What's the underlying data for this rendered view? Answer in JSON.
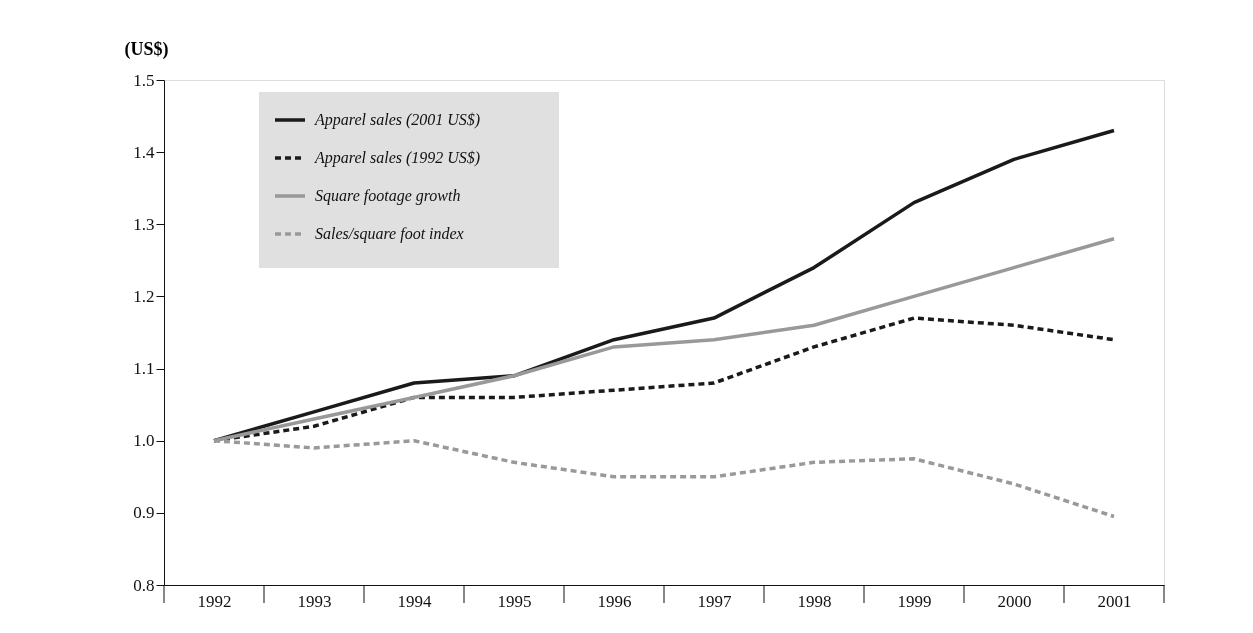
{
  "chart_data": {
    "type": "line",
    "ylabel": "(US$)",
    "categories": [
      "1992",
      "1993",
      "1994",
      "1995",
      "1996",
      "1997",
      "1998",
      "1999",
      "2000",
      "2001"
    ],
    "series": [
      {
        "name": "Apparel sales (2001 US$)",
        "color": "#1a1a1a",
        "line_style": "solid",
        "values": [
          1.0,
          1.04,
          1.08,
          1.09,
          1.14,
          1.17,
          1.24,
          1.33,
          1.39,
          1.43
        ]
      },
      {
        "name": "Apparel sales (1992 US$)",
        "color": "#1a1a1a",
        "line_style": "dashed",
        "values": [
          1.0,
          1.02,
          1.06,
          1.06,
          1.07,
          1.08,
          1.13,
          1.17,
          1.16,
          1.14
        ]
      },
      {
        "name": "Square footage growth",
        "color": "#999999",
        "line_style": "solid",
        "values": [
          1.0,
          1.03,
          1.06,
          1.09,
          1.13,
          1.14,
          1.16,
          1.2,
          1.24,
          1.28
        ]
      },
      {
        "name": "Sales/square foot index",
        "color": "#999999",
        "line_style": "dashed",
        "values": [
          1.0,
          0.99,
          1.0,
          0.97,
          0.95,
          0.95,
          0.97,
          0.975,
          0.94,
          0.895
        ]
      }
    ],
    "ylim": [
      0.8,
      1.5
    ],
    "yticks": [
      0.8,
      0.9,
      {
        "value": 1.0,
        "label": "1.0"
      },
      1.1,
      1.2,
      1.3,
      1.4,
      1.5
    ],
    "grid": false,
    "legend": "top left",
    "marker": "none"
  }
}
